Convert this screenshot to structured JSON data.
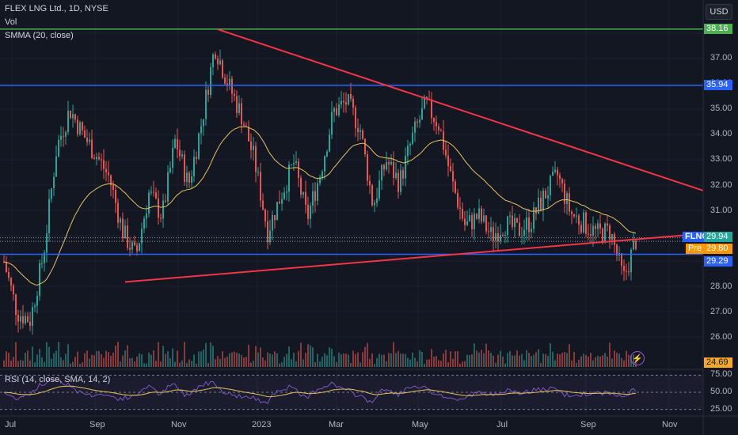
{
  "symbol_title": "FLEX LNG Ltd., 1D, NYSE",
  "legend_vol": "Vol",
  "legend_smma": "SMMA (20, close)",
  "legend_rsi": "RSI (14, close, SMA, 14, 2)",
  "currency_button": "USD",
  "price_axis": [
    "37.00",
    "36.00",
    "35.00",
    "34.00",
    "33.00",
    "32.00",
    "31.00",
    "30.00",
    "29.00",
    "28.00",
    "27.00",
    "26.00"
  ],
  "rsi_axis": [
    "75.00",
    "50.00",
    "25.00"
  ],
  "time_axis": [
    "Jul",
    "Sep",
    "Nov",
    "2023",
    "Mar",
    "May",
    "Jul",
    "Sep",
    "Nov"
  ],
  "tags": {
    "green_level": "38.16",
    "blue_level": "35.94",
    "ticker": "FLNG",
    "last_price": "29.94",
    "pre_label": "Pre",
    "pre_price": "29.80",
    "support_level": "29.29",
    "volume_value": "24.69"
  },
  "colors": {
    "background": "#131722",
    "up": "#26a69a",
    "down": "#ef5350",
    "smma": "#e6c25a",
    "trendline": "#f23645",
    "green_line": "#4caf50",
    "blue_line": "#2962ff",
    "rsi": "#7e57c2",
    "rsi_sma": "#e6c25a"
  },
  "chart_data": {
    "type": "candlestick",
    "horizontal_levels": [
      38.16,
      35.94,
      29.29
    ],
    "trendlines": [
      {
        "from": [
          "Nov 2022",
          38.1
        ],
        "to": [
          "Oct 2023",
          32.0
        ]
      },
      {
        "from": [
          "Sep 2022",
          28.2
        ],
        "to": [
          "Oct 2023",
          30.1
        ]
      }
    ],
    "close_path": [
      {
        "x": "Jul",
        "y": 29.0
      },
      {
        "x": "Jul",
        "y": 27.0
      },
      {
        "x": "Jul",
        "y": 26.7
      },
      {
        "x": "Aug",
        "y": 29.3
      },
      {
        "x": "Aug",
        "y": 33.5
      },
      {
        "x": "Aug",
        "y": 35.0
      },
      {
        "x": "Aug",
        "y": 34.0
      },
      {
        "x": "Sep",
        "y": 33.2
      },
      {
        "x": "Sep",
        "y": 32.3
      },
      {
        "x": "Sep",
        "y": 30.2
      },
      {
        "x": "Oct",
        "y": 29.2
      },
      {
        "x": "Oct",
        "y": 31.7
      },
      {
        "x": "Oct",
        "y": 30.8
      },
      {
        "x": "Nov",
        "y": 33.8
      },
      {
        "x": "Nov",
        "y": 32.0
      },
      {
        "x": "Nov",
        "y": 34.5
      },
      {
        "x": "Dec",
        "y": 37.5
      },
      {
        "x": "Dec",
        "y": 36.0
      },
      {
        "x": "Dec",
        "y": 34.8
      },
      {
        "x": "Jan",
        "y": 33.0
      },
      {
        "x": "Jan",
        "y": 30.2
      },
      {
        "x": "Jan",
        "y": 31.6
      },
      {
        "x": "Feb",
        "y": 32.9
      },
      {
        "x": "Feb",
        "y": 30.7
      },
      {
        "x": "Feb",
        "y": 32.5
      },
      {
        "x": "Mar",
        "y": 34.9
      },
      {
        "x": "Mar",
        "y": 35.3
      },
      {
        "x": "Mar",
        "y": 34.3
      },
      {
        "x": "Mar",
        "y": 31.2
      },
      {
        "x": "Apr",
        "y": 33.0
      },
      {
        "x": "Apr",
        "y": 32.1
      },
      {
        "x": "Apr",
        "y": 33.9
      },
      {
        "x": "May",
        "y": 35.2
      },
      {
        "x": "May",
        "y": 34.4
      },
      {
        "x": "May",
        "y": 32.1
      },
      {
        "x": "Jun",
        "y": 30.4
      },
      {
        "x": "Jun",
        "y": 30.8
      },
      {
        "x": "Jun",
        "y": 30.0
      },
      {
        "x": "Jul",
        "y": 30.5
      },
      {
        "x": "Jul",
        "y": 30.2
      },
      {
        "x": "Jul",
        "y": 30.6
      },
      {
        "x": "Aug",
        "y": 31.6
      },
      {
        "x": "Aug",
        "y": 32.4
      },
      {
        "x": "Aug",
        "y": 30.9
      },
      {
        "x": "Sep",
        "y": 30.5
      },
      {
        "x": "Sep",
        "y": 30.1
      },
      {
        "x": "Sep",
        "y": 30.2
      },
      {
        "x": "Oct",
        "y": 28.3
      },
      {
        "x": "Oct",
        "y": 29.94
      }
    ],
    "rsi_range": [
      25,
      75
    ]
  }
}
